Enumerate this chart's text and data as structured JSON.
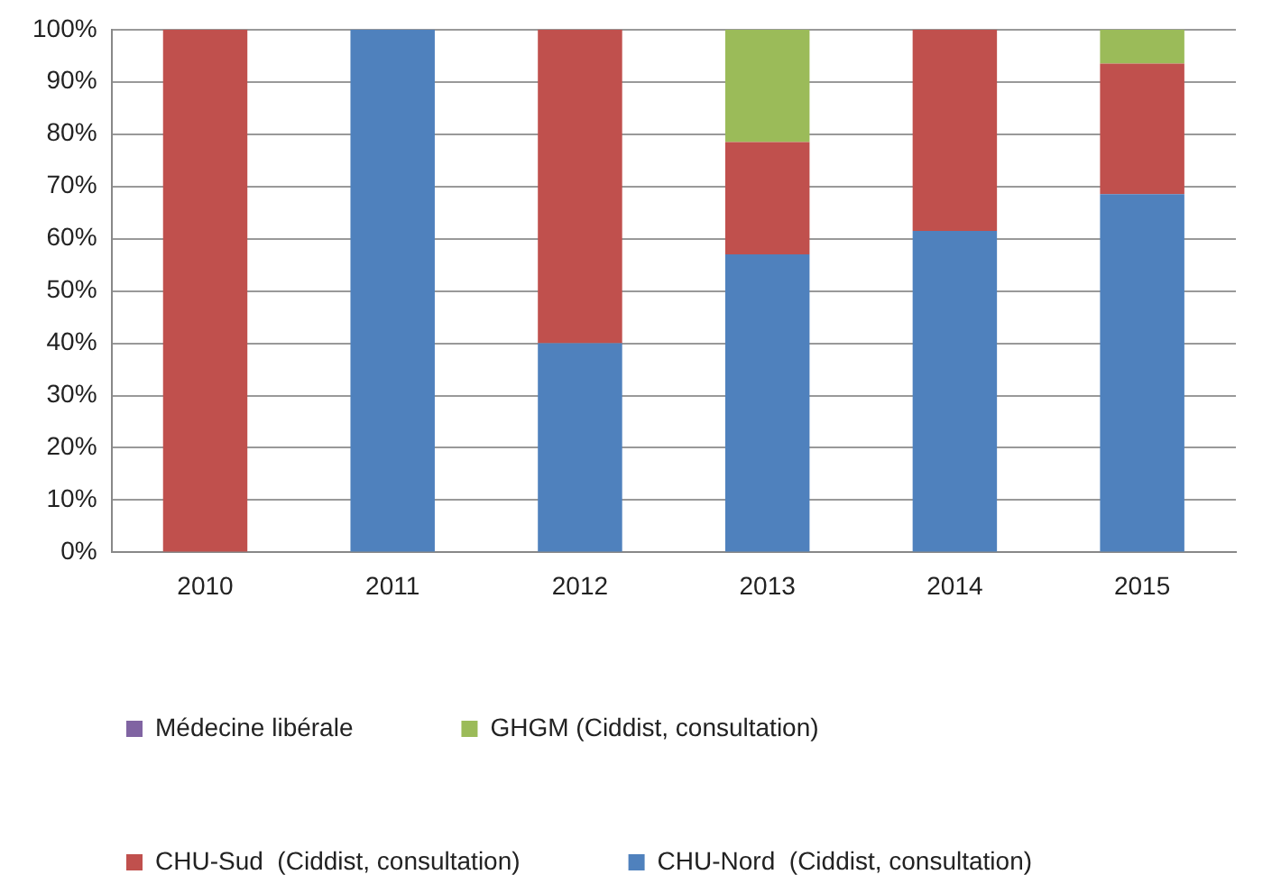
{
  "chart_data": {
    "type": "bar",
    "stacked": true,
    "categories": [
      "2010",
      "2011",
      "2012",
      "2013",
      "2014",
      "2015"
    ],
    "series": [
      {
        "name": "CHU-Nord  (Ciddist, consultation)",
        "color": "#4f81bd",
        "values": [
          0,
          100,
          40,
          57,
          61.5,
          68.5
        ]
      },
      {
        "name": "CHU-Sud  (Ciddist, consultation)",
        "color": "#c0504d",
        "values": [
          100,
          0,
          60,
          21.5,
          38.5,
          25
        ]
      },
      {
        "name": "GHGM (Ciddist, consultation)",
        "color": "#9bbb59",
        "values": [
          0,
          0,
          0,
          21.5,
          0,
          6.5
        ]
      },
      {
        "name": "Médecine libérale",
        "color": "#8064a2",
        "values": [
          0,
          0,
          0,
          0,
          0,
          0
        ]
      }
    ],
    "ylim": [
      0,
      100
    ],
    "yticks": [
      {
        "value": 0,
        "label": "0%"
      },
      {
        "value": 10,
        "label": "10%"
      },
      {
        "value": 20,
        "label": "20%"
      },
      {
        "value": 30,
        "label": "30%"
      },
      {
        "value": 40,
        "label": "40%"
      },
      {
        "value": 50,
        "label": "50%"
      },
      {
        "value": 60,
        "label": "60%"
      },
      {
        "value": 70,
        "label": "70%"
      },
      {
        "value": 80,
        "label": "80%"
      },
      {
        "value": 90,
        "label": "90%"
      },
      {
        "value": 100,
        "label": "100%"
      }
    ],
    "grid": "y",
    "legend": "bottom"
  }
}
